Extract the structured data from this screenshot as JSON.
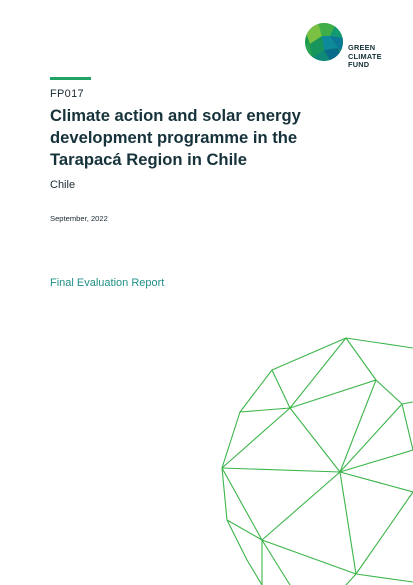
{
  "logo": {
    "lines": [
      "GREEN",
      "CLIMATE",
      "FUND"
    ],
    "icon": "gcf-globe-icon",
    "colors": [
      "#1d9a4c",
      "#0f8a9b",
      "#7ac143",
      "#0b6b8a"
    ]
  },
  "document": {
    "code": "FP017",
    "title": "Climate action and solar energy development programme in the Tarapacá Region in Chile",
    "country": "Chile",
    "date": "September, 2022",
    "report_type": "Final Evaluation Report"
  },
  "colors": {
    "accent_bar": "#21a366",
    "report_type": "#1f8f86",
    "geodesic_lines": "#3cb54a"
  }
}
